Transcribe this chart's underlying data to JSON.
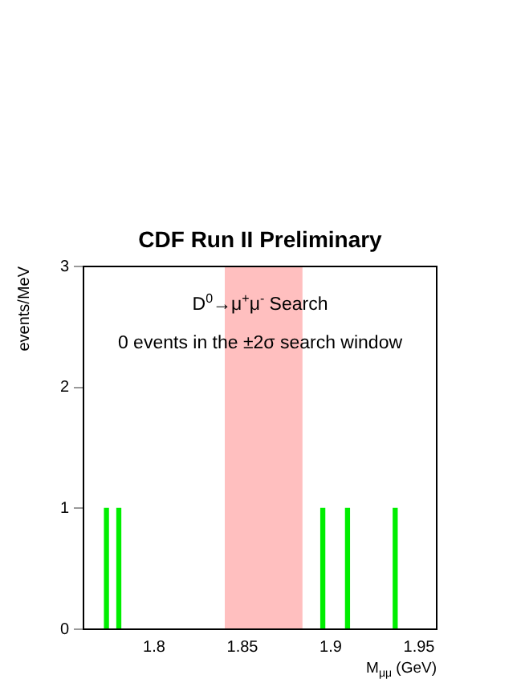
{
  "chart_data": {
    "type": "bar",
    "title": "CDF Run II Preliminary",
    "xlabel": "M$_{μμ}$ (GeV)",
    "ylabel": "events/MeV",
    "annotations": [
      "D$^{0}$→μ$^{+}$μ$^{-}$ Search",
      "0 events in the ±2σ search window"
    ],
    "x": [
      1.773,
      1.78,
      1.8955,
      1.9095,
      1.9365
    ],
    "series": [
      {
        "color": "#00ee00",
        "values": [
          1,
          1,
          1,
          1,
          1
        ]
      }
    ],
    "bands": [
      {
        "axis": "x",
        "from": 1.84,
        "to": 1.884,
        "color": "#ff0000"
      }
    ],
    "xlim": [
      1.76,
      1.96
    ],
    "xticks": [
      1.8,
      1.85,
      1.9,
      1.95
    ],
    "ylim": [
      0,
      3
    ],
    "yticks": [
      0,
      1,
      2,
      3
    ],
    "grid": false,
    "legend": false
  }
}
